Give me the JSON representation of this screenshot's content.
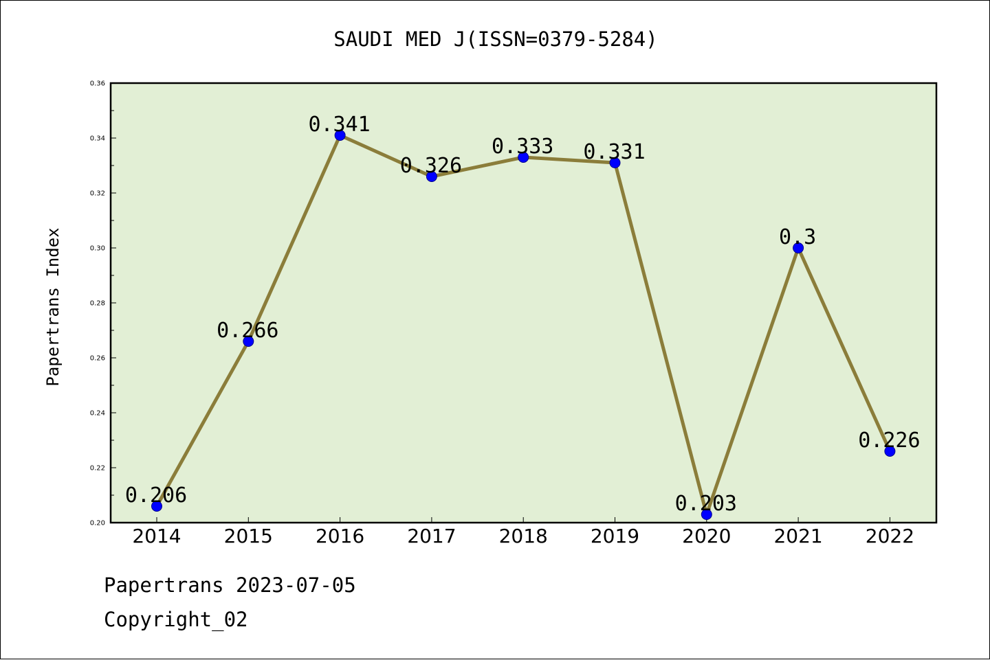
{
  "chart_data": {
    "type": "line",
    "title": "SAUDI MED J(ISSN=0379-5284)",
    "ylabel": "Papertrans Index",
    "xlabel": "",
    "categories": [
      "2014",
      "2015",
      "2016",
      "2017",
      "2018",
      "2019",
      "2020",
      "2021",
      "2022"
    ],
    "series": [
      {
        "values": [
          0.206,
          0.266,
          0.341,
          0.326,
          0.333,
          0.331,
          0.203,
          0.3,
          0.226
        ],
        "labels": [
          "0.206",
          "0.266",
          "0.341",
          "0.326",
          "0.333",
          "0.331",
          "0.203",
          "0.3",
          "0.226"
        ]
      }
    ],
    "ylim": [
      0.2,
      0.36
    ],
    "yticks": [
      "0.20",
      "0.22",
      "0.24",
      "0.26",
      "0.28",
      "0.30",
      "0.32",
      "0.34",
      "0.36"
    ],
    "grid": false,
    "legend": "none",
    "colors": {
      "line": "#8B7D3A",
      "marker": "#0000FF",
      "plot_background": "#E2EFD5"
    }
  },
  "footer": {
    "line1": "Papertrans 2023-07-05",
    "line2": "Copyright_02"
  }
}
